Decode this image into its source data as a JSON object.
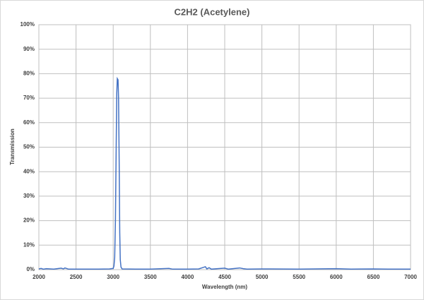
{
  "chart_data": {
    "type": "line",
    "title": "C2H2 (Acetylene)",
    "x_label": "Wavelength (nm)",
    "y_label": "Transmission",
    "x": [
      2000,
      2030,
      2060,
      2100,
      2200,
      2300,
      2330,
      2350,
      2400,
      2600,
      2800,
      2950,
      3000,
      3010,
      3020,
      3030,
      3040,
      3048,
      3055,
      3065,
      3072,
      3080,
      3088,
      3095,
      3105,
      3120,
      3300,
      3500,
      3750,
      3800,
      4000,
      4150,
      4240,
      4260,
      4290,
      4320,
      4500,
      4550,
      4700,
      4750,
      4800,
      5000,
      5500,
      6000,
      6200,
      6500,
      6700,
      7000
    ],
    "series": [
      {
        "name": "C2H2",
        "color": "#4472c4",
        "values": [
          0.3,
          0.5,
          0.2,
          0.4,
          0.2,
          0.6,
          0.3,
          0.7,
          0.2,
          0.2,
          0.2,
          0.3,
          0.5,
          1.5,
          5,
          20,
          50,
          72,
          78,
          77.5,
          70,
          45,
          15,
          4,
          1,
          0.3,
          0.2,
          0.2,
          0.5,
          0.2,
          0.2,
          0.3,
          1.2,
          0.3,
          0.8,
          0.2,
          0.6,
          0.2,
          0.7,
          0.4,
          0.2,
          0.3,
          0.2,
          0.4,
          0.2,
          0.3,
          0.2,
          0.2
        ]
      }
    ],
    "xlim": [
      2000,
      7000
    ],
    "xticks": [
      2000,
      2500,
      3000,
      3500,
      4000,
      4500,
      5000,
      5500,
      6000,
      6500,
      7000
    ],
    "ylim": [
      0,
      100
    ],
    "yticks": [
      {
        "value": 0,
        "label": "0%"
      },
      {
        "value": 10,
        "label": "10%"
      },
      {
        "value": 20,
        "label": "20%"
      },
      {
        "value": 30,
        "label": "30%"
      },
      {
        "value": 40,
        "label": "40%"
      },
      {
        "value": 50,
        "label": "50%"
      },
      {
        "value": 60,
        "label": "60%"
      },
      {
        "value": 70,
        "label": "70%"
      },
      {
        "value": 80,
        "label": "80%"
      },
      {
        "value": 90,
        "label": "90%"
      },
      {
        "value": 100,
        "label": "100%"
      }
    ],
    "grid": true
  }
}
